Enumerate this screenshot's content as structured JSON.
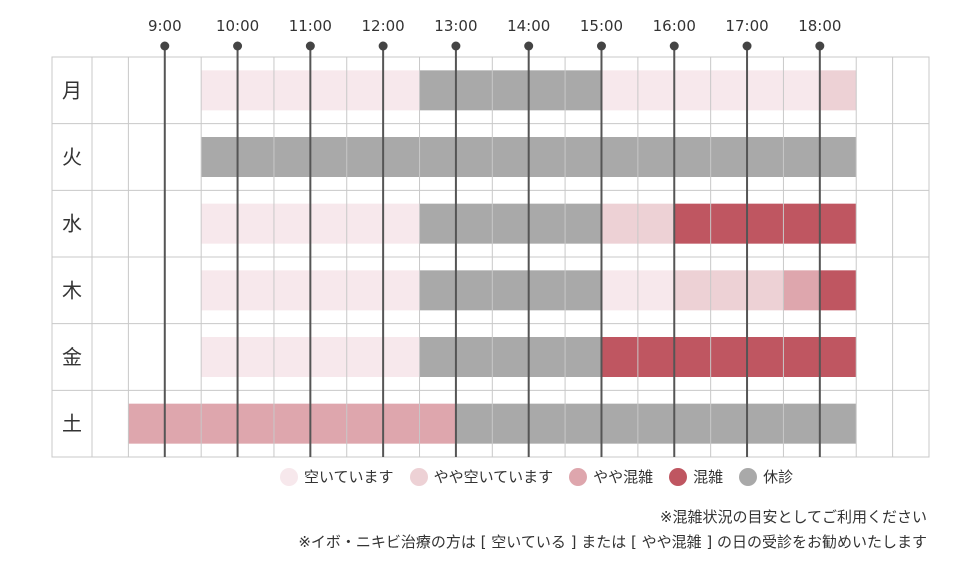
{
  "chart_data": {
    "type": "heatmap",
    "time_labels": [
      "9:00",
      "10:00",
      "11:00",
      "12:00",
      "13:00",
      "14:00",
      "15:00",
      "16:00",
      "17:00",
      "18:00"
    ],
    "time_range": [
      8.0,
      19.5
    ],
    "days": [
      "月",
      "火",
      "水",
      "木",
      "金",
      "土"
    ],
    "legend": [
      {
        "key": "empty",
        "label": "空いています",
        "color": "#f7e8ec"
      },
      {
        "key": "slightly_empty",
        "label": "やや空いています",
        "color": "#edd1d5"
      },
      {
        "key": "slightly_busy",
        "label": "やや混雑",
        "color": "#dea6ad"
      },
      {
        "key": "busy",
        "label": "混雑",
        "color": "#bf5661"
      },
      {
        "key": "closed",
        "label": "休診",
        "color": "#a9a9a9"
      }
    ],
    "schedule": [
      {
        "day": "月",
        "blocks": [
          {
            "start": 9.5,
            "end": 12.5,
            "status": "empty"
          },
          {
            "start": 12.5,
            "end": 15.0,
            "status": "closed"
          },
          {
            "start": 15.0,
            "end": 18.0,
            "status": "empty"
          },
          {
            "start": 18.0,
            "end": 18.5,
            "status": "slightly_empty"
          }
        ]
      },
      {
        "day": "火",
        "blocks": [
          {
            "start": 9.5,
            "end": 18.5,
            "status": "closed"
          }
        ]
      },
      {
        "day": "水",
        "blocks": [
          {
            "start": 9.5,
            "end": 12.5,
            "status": "empty"
          },
          {
            "start": 12.5,
            "end": 15.0,
            "status": "closed"
          },
          {
            "start": 15.0,
            "end": 16.0,
            "status": "slightly_empty"
          },
          {
            "start": 16.0,
            "end": 18.5,
            "status": "busy"
          }
        ]
      },
      {
        "day": "木",
        "blocks": [
          {
            "start": 9.5,
            "end": 12.5,
            "status": "empty"
          },
          {
            "start": 12.5,
            "end": 15.0,
            "status": "closed"
          },
          {
            "start": 15.0,
            "end": 16.0,
            "status": "empty"
          },
          {
            "start": 16.0,
            "end": 17.5,
            "status": "slightly_empty"
          },
          {
            "start": 17.5,
            "end": 18.0,
            "status": "slightly_busy"
          },
          {
            "start": 18.0,
            "end": 18.5,
            "status": "busy"
          }
        ]
      },
      {
        "day": "金",
        "blocks": [
          {
            "start": 9.5,
            "end": 12.5,
            "status": "empty"
          },
          {
            "start": 12.5,
            "end": 15.0,
            "status": "closed"
          },
          {
            "start": 15.0,
            "end": 18.5,
            "status": "busy"
          }
        ]
      },
      {
        "day": "土",
        "blocks": [
          {
            "start": 8.5,
            "end": 13.0,
            "status": "slightly_busy"
          },
          {
            "start": 13.0,
            "end": 18.5,
            "status": "closed"
          }
        ]
      }
    ]
  },
  "notes": {
    "line1": "※混雑状況の目安としてご利用ください",
    "line2": "※イボ・ニキビ治療の方は [ 空いている ] または [ やや混雑 ] の日の受診をお勧めいたします"
  }
}
